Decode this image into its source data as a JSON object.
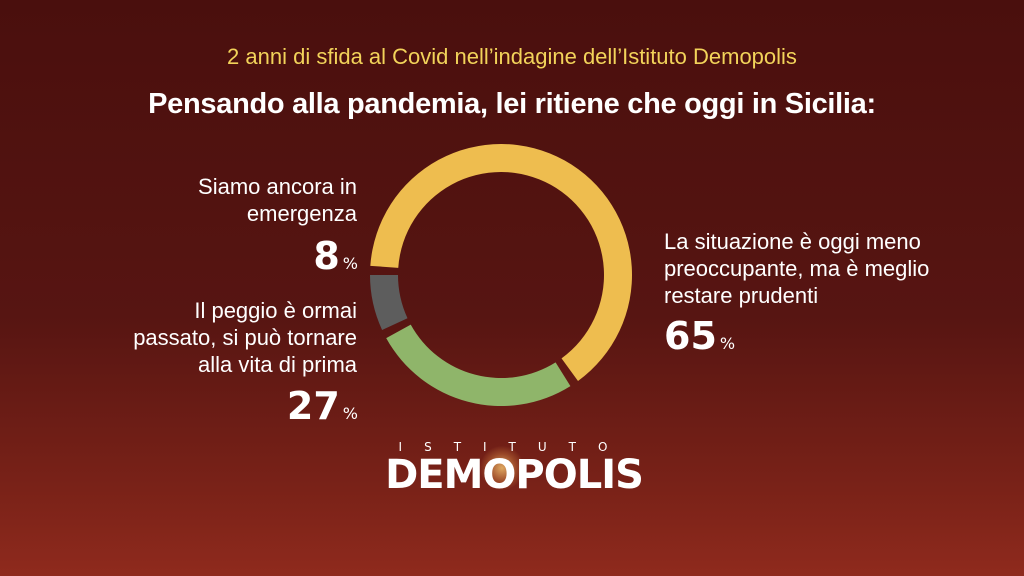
{
  "header": {
    "subtitle": "2 anni di sfida al Covid nell’indagine dell’Istituto Demopolis",
    "title": "Pensando alla pandemia, lei ritiene che oggi in Sicilia:"
  },
  "chart_data": {
    "type": "pie",
    "variant": "donut",
    "title": "Pensando alla pandemia, lei ritiene che oggi in Sicilia:",
    "unit": "%",
    "slices": [
      {
        "label": "La situazione è oggi meno preoccupante, ma è meglio restare prudenti",
        "value": 65,
        "value_label": "65",
        "color": "#eebd4f"
      },
      {
        "label": "Il peggio è ormai passato, si può tornare alla vita di prima",
        "value": 27,
        "value_label": "27",
        "color": "#8fb56a"
      },
      {
        "label": "Siamo ancora in emergenza",
        "value": 8,
        "value_label": "8",
        "color": "#5d5d5d"
      }
    ]
  },
  "labels": {
    "emergenza": [
      "Siamo ancora in",
      "emergenza"
    ],
    "peggio": [
      "Il peggio è ormai",
      "passato, si può tornare",
      "alla vita di prima"
    ],
    "situazione": [
      "La situazione è oggi meno",
      "preoccupante, ma è meglio",
      "restare prudenti"
    ],
    "percent_symbol": "%"
  },
  "logo": {
    "top_text": "ISTITUTO",
    "main_text": "DEMOPOLIS"
  }
}
